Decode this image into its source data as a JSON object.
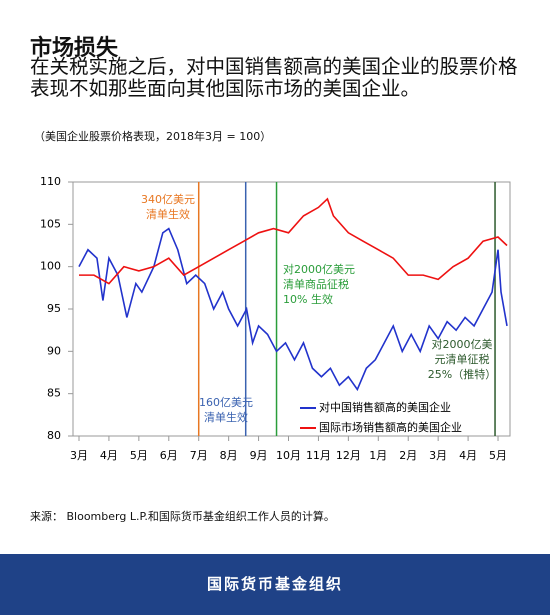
{
  "title": "市场损失",
  "subtitle": "在关税实施之后，对中国销售额高的美国企业的股票价格表现不如那些面向其他国际市场的美国企业。",
  "note": "（美国企业股票价格表现，2018年3月 = 100）",
  "source": "来源： Bloomberg L.P.和国际货币基金组织工作人员的计算。",
  "footer": "国际货币基金组织",
  "chart_data": {
    "type": "line",
    "xlim": [
      -0.2,
      14.4
    ],
    "ylim": [
      80,
      110
    ],
    "yticks": [
      80,
      85,
      90,
      95,
      100,
      105,
      110
    ],
    "xticks": [
      {
        "value": 0,
        "label": "3月"
      },
      {
        "value": 1,
        "label": "4月"
      },
      {
        "value": 2,
        "label": "5月"
      },
      {
        "value": 3,
        "label": "6月"
      },
      {
        "value": 4,
        "label": "7月"
      },
      {
        "value": 5,
        "label": "8月"
      },
      {
        "value": 6,
        "label": "9月"
      },
      {
        "value": 7,
        "label": "10月"
      },
      {
        "value": 8,
        "label": "11月"
      },
      {
        "value": 9,
        "label": "12月"
      },
      {
        "value": 10,
        "label": "1月"
      },
      {
        "value": 11,
        "label": "2月"
      },
      {
        "value": 12,
        "label": "3月"
      },
      {
        "value": 13,
        "label": "4月"
      },
      {
        "value": 14,
        "label": "5月"
      }
    ],
    "series": [
      {
        "name": "对中国销售额高的美国企业",
        "color": "#2233cc",
        "x": [
          0,
          0.3,
          0.6,
          0.8,
          1.0,
          1.3,
          1.6,
          1.9,
          2.1,
          2.5,
          2.8,
          3.0,
          3.3,
          3.6,
          3.9,
          4.2,
          4.5,
          4.8,
          5.0,
          5.3,
          5.6,
          5.8,
          6.0,
          6.3,
          6.6,
          6.9,
          7.2,
          7.5,
          7.8,
          8.1,
          8.4,
          8.7,
          9.0,
          9.3,
          9.6,
          9.9,
          10.2,
          10.5,
          10.8,
          11.1,
          11.4,
          11.7,
          12.0,
          12.3,
          12.6,
          12.9,
          13.2,
          13.5,
          13.8,
          14.0,
          14.1,
          14.3
        ],
        "values": [
          100,
          102,
          101,
          96,
          101,
          99,
          94,
          98,
          97,
          100,
          104,
          104.5,
          102,
          98,
          99,
          98,
          95,
          97,
          95,
          93,
          95,
          91,
          93,
          92,
          90,
          91,
          89,
          91,
          88,
          87,
          88,
          86,
          87,
          85.5,
          88,
          89,
          91,
          93,
          90,
          92,
          90,
          93,
          91.5,
          93.5,
          92.5,
          94,
          93,
          95,
          97,
          102,
          97,
          93
        ]
      },
      {
        "name": "国际市场销售额高的美国企业",
        "color": "#ee1111",
        "x": [
          0,
          0.5,
          1.0,
          1.5,
          2.0,
          2.5,
          3.0,
          3.5,
          4.0,
          4.5,
          5.0,
          5.5,
          6.0,
          6.5,
          7.0,
          7.5,
          8.0,
          8.3,
          8.5,
          9.0,
          9.5,
          10.0,
          10.5,
          11.0,
          11.5,
          12.0,
          12.5,
          13.0,
          13.5,
          14.0,
          14.3
        ],
        "values": [
          99,
          99,
          98,
          100,
          99.5,
          100,
          101,
          99,
          100,
          101,
          102,
          103,
          104,
          104.5,
          104,
          106,
          107,
          108,
          106,
          104,
          103,
          102,
          101,
          99,
          99,
          98.5,
          100,
          101,
          103,
          103.5,
          102.5
        ]
      }
    ],
    "annotations": [
      {
        "x": 4.0,
        "color": "#e87722",
        "lines": [
          "340亿美元",
          "清单生效"
        ]
      },
      {
        "x": 5.57,
        "color": "#3a62b0",
        "lines": [
          "160亿美元",
          "清单生效"
        ]
      },
      {
        "x": 6.6,
        "color": "#2a9d3a",
        "lines": [
          "对2000亿美元",
          "清单商品征税",
          "10% 生效"
        ]
      },
      {
        "x": 13.9,
        "color": "#2d5a2d",
        "lines": [
          "对2000亿美",
          "元清单征税",
          "25%（推特）"
        ]
      }
    ]
  }
}
